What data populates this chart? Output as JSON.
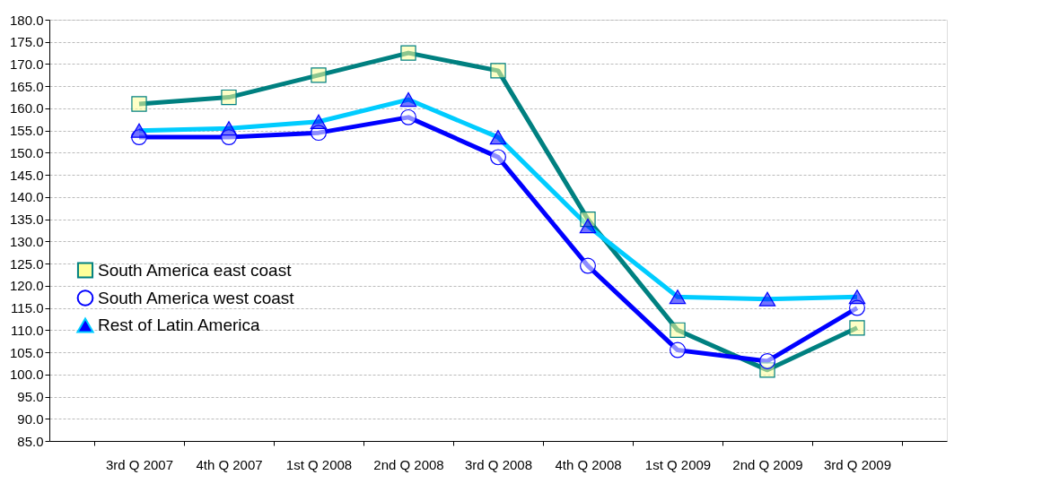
{
  "chart_data": {
    "type": "line",
    "categories": [
      "3rd Q 2007",
      "4th Q 2007",
      "1st Q 2008",
      "2nd Q 2008",
      "3rd Q 2008",
      "4th Q 2008",
      "1st Q 2009",
      "2nd Q 2009",
      "3rd Q 2009"
    ],
    "series": [
      {
        "name": "South America east coast",
        "color": "#008080",
        "marker": "square",
        "values": [
          161.0,
          162.5,
          167.5,
          172.5,
          168.5,
          135.0,
          110.0,
          101.0,
          110.5
        ]
      },
      {
        "name": "South America west coast",
        "color": "#0000ff",
        "marker": "circle",
        "values": [
          153.5,
          153.5,
          154.5,
          158.0,
          149.0,
          124.5,
          105.5,
          103.0,
          115.0
        ]
      },
      {
        "name": "Rest of Latin America",
        "color": "#00ccff",
        "marker": "triangle",
        "values": [
          155.0,
          155.5,
          157.0,
          162.0,
          153.5,
          133.5,
          117.5,
          117.0,
          117.5
        ]
      }
    ],
    "ylim": [
      85.0,
      180.0
    ],
    "yticks": [
      {
        "value": 85,
        "label": "85.0"
      },
      {
        "value": 90,
        "label": "90.0"
      },
      {
        "value": 95,
        "label": "95.0"
      },
      {
        "value": 100,
        "label": "100.0"
      },
      {
        "value": 105,
        "label": "105.0"
      },
      {
        "value": 110,
        "label": "110.0"
      },
      {
        "value": 115,
        "label": "115.0"
      },
      {
        "value": 120,
        "label": "120.0"
      },
      {
        "value": 125,
        "label": "125.0"
      },
      {
        "value": 130,
        "label": "130.0"
      },
      {
        "value": 135,
        "label": "135.0"
      },
      {
        "value": 140,
        "label": "140.0"
      },
      {
        "value": 145,
        "label": "145.0"
      },
      {
        "value": 150,
        "label": "150.0"
      },
      {
        "value": 155,
        "label": "155.0"
      },
      {
        "value": 160,
        "label": "160.0"
      },
      {
        "value": 165,
        "label": "165.0"
      },
      {
        "value": 170,
        "label": "170.0"
      },
      {
        "value": 175,
        "label": "175.0"
      },
      {
        "value": 180,
        "label": "180.0"
      }
    ],
    "grid": "y",
    "legend": "bottom left",
    "line_style": "solid"
  }
}
